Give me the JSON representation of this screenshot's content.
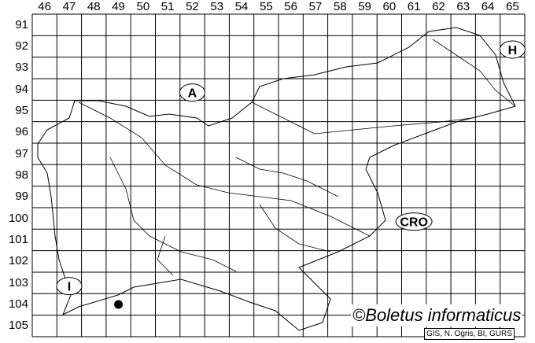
{
  "map": {
    "columns": [
      "46",
      "47",
      "48",
      "49",
      "50",
      "51",
      "52",
      "53",
      "54",
      "55",
      "56",
      "57",
      "58",
      "59",
      "60",
      "61",
      "62",
      "63",
      "64",
      "65"
    ],
    "rows": [
      "91",
      "92",
      "93",
      "94",
      "95",
      "96",
      "97",
      "98",
      "99",
      "100",
      "101",
      "102",
      "103",
      "104",
      "105"
    ],
    "country_labels": [
      {
        "text": "A",
        "meaning_col": "52",
        "meaning_row": "94"
      },
      {
        "text": "H",
        "meaning_col": "65",
        "meaning_row": "92"
      },
      {
        "text": "CRO",
        "meaning_col": "61",
        "meaning_row": "100"
      },
      {
        "text": "I",
        "meaning_col": "47",
        "meaning_row": "103"
      }
    ],
    "occurrence_points": [
      {
        "col": "49",
        "row": "104"
      }
    ],
    "copyright": "©Boletus informaticus",
    "credits": "GIS, N. Ogris, BI, GURS",
    "colors": {
      "lines": "#000000",
      "background": "#ffffff",
      "point": "#000000"
    }
  }
}
